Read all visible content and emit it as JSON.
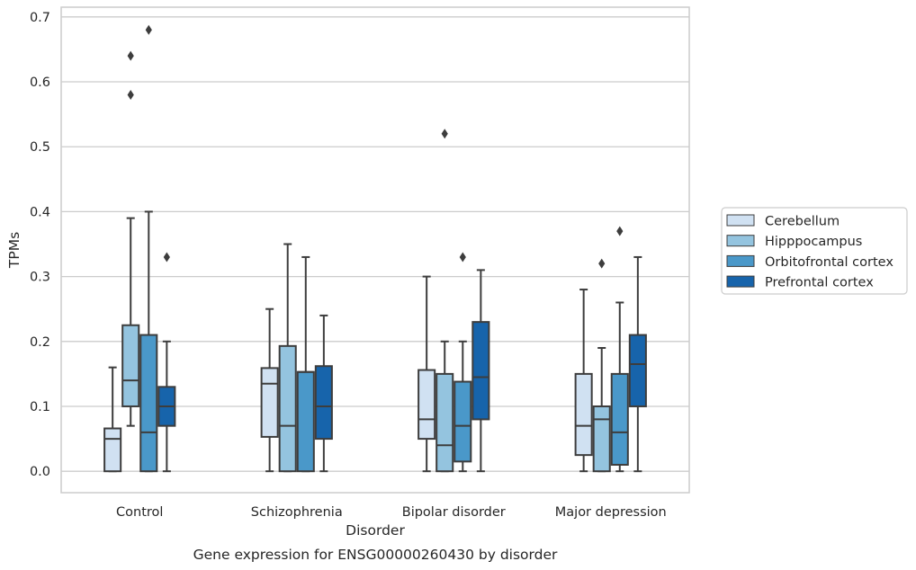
{
  "chart_data": {
    "type": "box",
    "caption": "Gene expression for ENSG00000260430 by disorder",
    "xlabel": "Disorder",
    "ylabel": "TPMs",
    "ylim": [
      -0.033,
      0.715
    ],
    "yticks": [
      0.0,
      0.1,
      0.2,
      0.3,
      0.4,
      0.5,
      0.6,
      0.7
    ],
    "ytick_labels": [
      "0.0",
      "0.1",
      "0.2",
      "0.3",
      "0.4",
      "0.5",
      "0.6",
      "0.7"
    ],
    "grid": "horizontal",
    "legend_position": "right",
    "categories": [
      "Control",
      "Schizophrenia",
      "Bipolar disorder",
      "Major depression"
    ],
    "series": [
      {
        "name": "Cerebellum",
        "color": "#d0e1f2",
        "boxes": [
          {
            "whisker_low": 0.0,
            "q1": 0.0,
            "median": 0.05,
            "q3": 0.066,
            "whisker_high": 0.16,
            "outliers": []
          },
          {
            "whisker_low": 0.0,
            "q1": 0.053,
            "median": 0.135,
            "q3": 0.159,
            "whisker_high": 0.25,
            "outliers": []
          },
          {
            "whisker_low": 0.0,
            "q1": 0.05,
            "median": 0.08,
            "q3": 0.156,
            "whisker_high": 0.3,
            "outliers": []
          },
          {
            "whisker_low": 0.0,
            "q1": 0.025,
            "median": 0.07,
            "q3": 0.15,
            "whisker_high": 0.28,
            "outliers": []
          }
        ]
      },
      {
        "name": "Hipppocampus",
        "color": "#94c4df",
        "boxes": [
          {
            "whisker_low": 0.07,
            "q1": 0.1,
            "median": 0.14,
            "q3": 0.225,
            "whisker_high": 0.39,
            "outliers": [
              0.58,
              0.64
            ]
          },
          {
            "whisker_low": 0.0,
            "q1": 0.0,
            "median": 0.07,
            "q3": 0.193,
            "whisker_high": 0.35,
            "outliers": []
          },
          {
            "whisker_low": 0.0,
            "q1": 0.0,
            "median": 0.04,
            "q3": 0.15,
            "whisker_high": 0.2,
            "outliers": [
              0.52
            ]
          },
          {
            "whisker_low": 0.0,
            "q1": 0.0,
            "median": 0.08,
            "q3": 0.1,
            "whisker_high": 0.19,
            "outliers": [
              0.32
            ]
          }
        ]
      },
      {
        "name": "Orbitofrontal cortex",
        "color": "#4a98c9",
        "boxes": [
          {
            "whisker_low": 0.0,
            "q1": 0.0,
            "median": 0.06,
            "q3": 0.21,
            "whisker_high": 0.4,
            "outliers": [
              0.68
            ]
          },
          {
            "whisker_low": 0.0,
            "q1": 0.0,
            "median": 0.153,
            "q3": 0.153,
            "whisker_high": 0.33,
            "outliers": []
          },
          {
            "whisker_low": 0.0,
            "q1": 0.015,
            "median": 0.07,
            "q3": 0.138,
            "whisker_high": 0.2,
            "outliers": [
              0.33
            ]
          },
          {
            "whisker_low": 0.0,
            "q1": 0.01,
            "median": 0.06,
            "q3": 0.15,
            "whisker_high": 0.26,
            "outliers": [
              0.37
            ]
          }
        ]
      },
      {
        "name": "Prefrontal cortex",
        "color": "#1764ab",
        "boxes": [
          {
            "whisker_low": 0.0,
            "q1": 0.07,
            "median": 0.1,
            "q3": 0.13,
            "whisker_high": 0.2,
            "outliers": [
              0.33
            ]
          },
          {
            "whisker_low": 0.0,
            "q1": 0.05,
            "median": 0.1,
            "q3": 0.162,
            "whisker_high": 0.24,
            "outliers": []
          },
          {
            "whisker_low": 0.0,
            "q1": 0.08,
            "median": 0.145,
            "q3": 0.23,
            "whisker_high": 0.31,
            "outliers": []
          },
          {
            "whisker_low": 0.0,
            "q1": 0.1,
            "median": 0.165,
            "q3": 0.21,
            "whisker_high": 0.33,
            "outliers": []
          }
        ]
      }
    ]
  }
}
